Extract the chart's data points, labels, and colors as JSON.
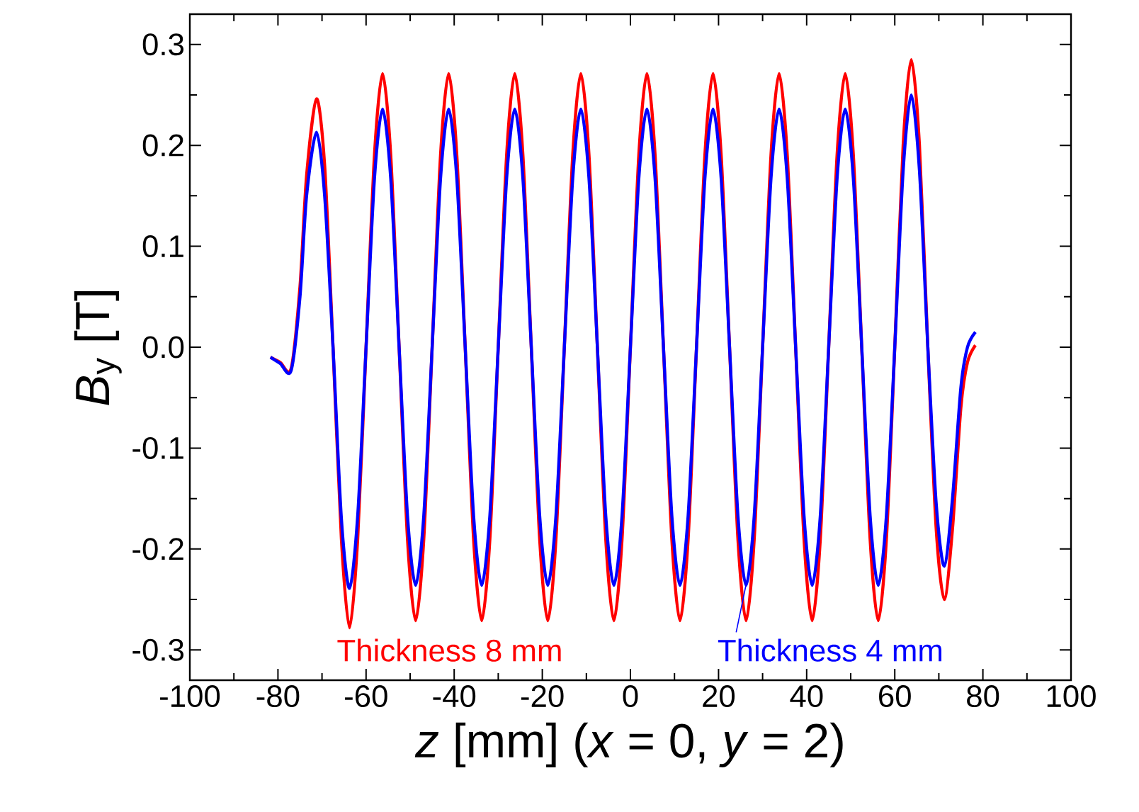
{
  "chart_data": {
    "type": "line",
    "xlabel": "*z* [mm] (*x* = 0, *y* = 2)",
    "ylabel": "*B*$_{y}$ [T]",
    "x": [
      -81.7,
      -79.5,
      -77,
      -75,
      -73.5,
      -71.25,
      -69.4,
      -67.5,
      -65.6,
      -63.75,
      -61.9,
      -60,
      -58.1,
      -56.25,
      -54.4,
      -52.5,
      -50.6,
      -48.75,
      -46.9,
      -45,
      -43.1,
      -41.25,
      -39.4,
      -37.5,
      -35.6,
      -33.75,
      -31.9,
      -30,
      -28.1,
      -26.25,
      -24.4,
      -22.5,
      -20.6,
      -18.75,
      -16.9,
      -15,
      -13.1,
      -11.25,
      -9.4,
      -7.5,
      -5.6,
      -3.75,
      -1.9,
      0,
      1.9,
      3.75,
      5.6,
      7.5,
      9.4,
      11.25,
      13.1,
      15,
      16.9,
      18.75,
      20.6,
      22.5,
      24.4,
      26.25,
      28.1,
      30,
      31.9,
      33.75,
      35.6,
      37.5,
      39.4,
      41.25,
      43.1,
      45,
      46.9,
      48.75,
      50.6,
      52.5,
      54.4,
      56.25,
      58.1,
      60,
      61.9,
      63.75,
      65.6,
      67.5,
      69.4,
      71.25,
      73.1,
      75,
      76.5,
      78.3
    ],
    "series": [
      {
        "name": "Thickness 8 mm",
        "color": "#ff0000",
        "values": [
          -0.01,
          -0.015,
          -0.021,
          0.06,
          0.17,
          0.246,
          0.18,
          0.0,
          -0.19,
          -0.278,
          -0.19,
          0.0,
          0.19,
          0.271,
          0.19,
          0.0,
          -0.19,
          -0.271,
          -0.19,
          0.0,
          0.19,
          0.271,
          0.19,
          0.0,
          -0.19,
          -0.271,
          -0.19,
          0.0,
          0.19,
          0.271,
          0.19,
          0.0,
          -0.19,
          -0.271,
          -0.19,
          0.0,
          0.19,
          0.271,
          0.19,
          0.0,
          -0.19,
          -0.271,
          -0.19,
          0.0,
          0.19,
          0.271,
          0.19,
          0.0,
          -0.19,
          -0.271,
          -0.19,
          0.0,
          0.19,
          0.271,
          0.19,
          0.0,
          -0.19,
          -0.271,
          -0.19,
          0.0,
          0.19,
          0.271,
          0.19,
          0.0,
          -0.19,
          -0.271,
          -0.19,
          0.0,
          0.19,
          0.271,
          0.19,
          0.0,
          -0.19,
          -0.271,
          -0.19,
          0.0,
          0.2,
          0.285,
          0.2,
          0.0,
          -0.18,
          -0.25,
          -0.18,
          -0.06,
          -0.015,
          0.002
        ]
      },
      {
        "name": "Thickness 4 mm",
        "color": "#0000ff",
        "values": [
          -0.01,
          -0.016,
          -0.023,
          0.05,
          0.15,
          0.213,
          0.15,
          0.0,
          -0.17,
          -0.239,
          -0.167,
          0.0,
          0.167,
          0.236,
          0.167,
          0.0,
          -0.167,
          -0.236,
          -0.167,
          0.0,
          0.167,
          0.236,
          0.167,
          0.0,
          -0.167,
          -0.236,
          -0.167,
          0.0,
          0.167,
          0.236,
          0.167,
          0.0,
          -0.167,
          -0.236,
          -0.167,
          0.0,
          0.167,
          0.236,
          0.167,
          0.0,
          -0.167,
          -0.236,
          -0.167,
          0.0,
          0.167,
          0.236,
          0.167,
          0.0,
          -0.167,
          -0.236,
          -0.167,
          0.0,
          0.167,
          0.236,
          0.167,
          0.0,
          -0.167,
          -0.236,
          -0.167,
          0.0,
          0.167,
          0.236,
          0.167,
          0.0,
          -0.167,
          -0.236,
          -0.167,
          0.0,
          0.167,
          0.236,
          0.167,
          0.0,
          -0.167,
          -0.236,
          -0.167,
          0.0,
          0.175,
          0.25,
          0.175,
          0.0,
          -0.155,
          -0.217,
          -0.15,
          -0.04,
          0.0,
          0.015
        ]
      }
    ],
    "xlim": [
      -100,
      100
    ],
    "xticks": [
      -100,
      -80,
      -60,
      -40,
      -20,
      0,
      20,
      40,
      60,
      80,
      100
    ],
    "ylim": [
      -0.33,
      0.33
    ],
    "yticks": [
      -0.3,
      -0.2,
      -0.1,
      {
        "value": 0,
        "label": "0.0"
      },
      0.1,
      0.2,
      0.3
    ],
    "line_style": "solid"
  }
}
